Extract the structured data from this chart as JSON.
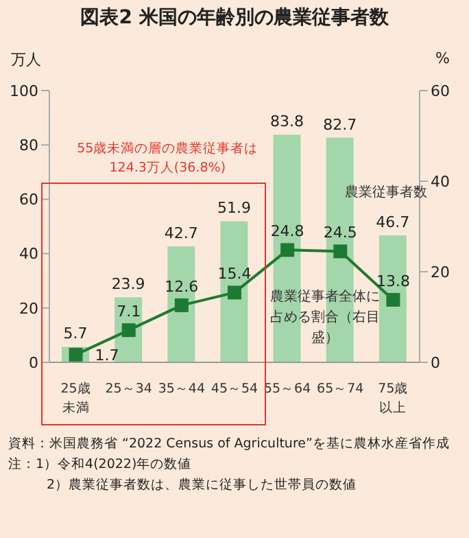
{
  "chart_data": {
    "type": "bar",
    "title": "図表2 米国の年齢別の農業従事者数",
    "ylabel": "万人",
    "y2label": "%",
    "categories": [
      "25歳未満",
      "25～34",
      "35～44",
      "45～54",
      "55～64",
      "65～74",
      "75歳以上"
    ],
    "series": [
      {
        "name": "農業従事者数",
        "color": "#a3d6aa",
        "values": [
          5.7,
          23.9,
          42.7,
          51.9,
          83.8,
          82.7,
          46.7
        ]
      },
      {
        "name": "農業従事者全体に占める割合（右目盛）",
        "type": "line",
        "axis": "y2",
        "color": "#1e7a32",
        "values": [
          1.7,
          7.1,
          12.6,
          15.4,
          24.8,
          24.5,
          13.8
        ]
      }
    ],
    "ylim": [
      0,
      100
    ],
    "yticks": [
      0,
      20,
      40,
      60,
      80,
      100
    ],
    "y2lim": [
      0,
      60
    ],
    "y2ticks": [
      0,
      20,
      40,
      60
    ],
    "grid": false,
    "legend": false,
    "marker": "square",
    "line_style": "solid",
    "data_labels": true,
    "annotations": [
      "55歳未満の層の農業従事者は\n124.3万人(36.8%)",
      "資料：米国農務省 “2022 Census of Agriculture”を基に農林水産省作成",
      "注：1）令和4(2022)年の数値",
      "2）農業従事者数は、農業に従事した世帯員の数値"
    ]
  }
}
